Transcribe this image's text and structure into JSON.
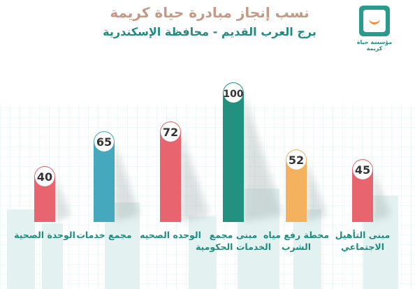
{
  "header": {
    "title": "نسب إنجاز مبادرة حياة كريمة",
    "subtitle": "برج العرب القديم -  محافظة الإسكندرية"
  },
  "logo": {
    "text": "مؤسسة حياة كريمة",
    "icon": "smile-logo-icon"
  },
  "chart_data": {
    "type": "bar",
    "title": "نسب إنجاز مبادرة حياة كريمة",
    "subtitle": "برج العرب القديم -  محافظة الإسكندرية",
    "categories": [
      "الوحدة الصحية",
      "مجمع خدمات",
      "الوحده الصحيه",
      "مبنى مجمع الخدمات الحكومية",
      "محطة رفع مياه الشرب",
      "مبنى التأهيل الاجتماعي"
    ],
    "values": [
      40,
      65,
      72,
      100,
      52,
      45
    ],
    "ylim": [
      0,
      100
    ],
    "grid": false,
    "colors": [
      "#e8646e",
      "#45a8bd",
      "#e8646e",
      "#22917f",
      "#f4b25e",
      "#e8646e"
    ],
    "label_color": "#1f8c80"
  }
}
